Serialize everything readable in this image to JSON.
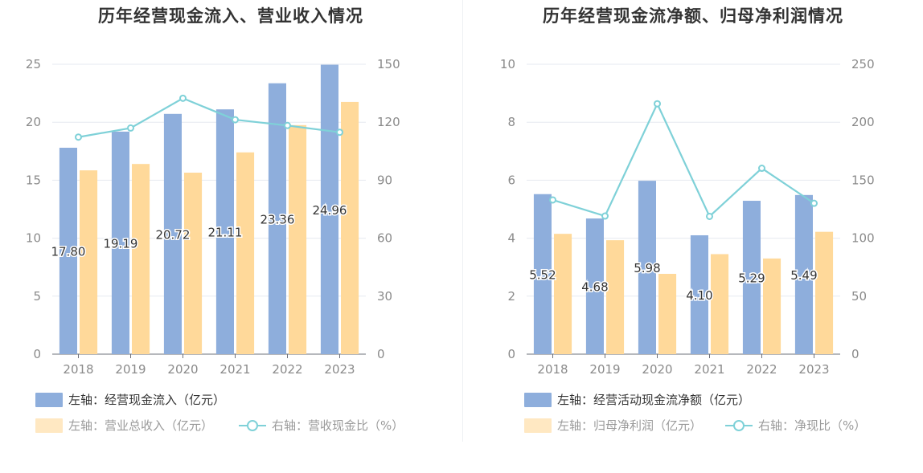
{
  "colors": {
    "bar_primary": "#8eaedc",
    "bar_secondary": "#ffd99a",
    "line": "#7fd1d8",
    "grid": "#e6e9f0",
    "axis_text": "#8a8a8a",
    "title_text": "#333333"
  },
  "chart_data": [
    {
      "type": "bar",
      "title": "历年经营现金流入、营业收入情况",
      "categories": [
        "2018",
        "2019",
        "2020",
        "2021",
        "2022",
        "2023"
      ],
      "y_left": {
        "ticks": [
          0,
          5,
          10,
          15,
          20,
          25
        ],
        "ylim": [
          0,
          25
        ]
      },
      "y_right": {
        "ticks": [
          0,
          30,
          60,
          90,
          120,
          150
        ],
        "ylim": [
          0,
          150
        ]
      },
      "series": [
        {
          "name": "左轴：经营现金流入（亿元）",
          "axis": "left",
          "kind": "bar",
          "values": [
            17.8,
            19.19,
            20.72,
            21.11,
            23.36,
            24.96
          ],
          "labels": [
            "17.80",
            "19.19",
            "20.72",
            "21.11",
            "23.36",
            "24.96"
          ]
        },
        {
          "name": "左轴：营业总收入（亿元）",
          "axis": "left",
          "kind": "bar",
          "values": [
            15.85,
            16.4,
            15.65,
            17.4,
            19.75,
            21.75
          ]
        },
        {
          "name": "右轴：营收现金比（%）",
          "axis": "right",
          "kind": "line",
          "values": [
            112.3,
            117.0,
            132.4,
            121.3,
            118.3,
            114.8
          ]
        }
      ],
      "legend": "bottom-left",
      "grid": true
    },
    {
      "type": "bar",
      "title": "历年经营现金流净额、归母净利润情况",
      "categories": [
        "2018",
        "2019",
        "2020",
        "2021",
        "2022",
        "2023"
      ],
      "y_left": {
        "ticks": [
          0,
          2,
          4,
          6,
          8,
          10
        ],
        "ylim": [
          0,
          10
        ]
      },
      "y_right": {
        "ticks": [
          0,
          50,
          100,
          150,
          200,
          250
        ],
        "ylim": [
          0,
          250
        ]
      },
      "series": [
        {
          "name": "左轴：经营活动现金流净额（亿元）",
          "axis": "left",
          "kind": "bar",
          "values": [
            5.52,
            4.68,
            5.98,
            4.1,
            5.29,
            5.49
          ],
          "labels": [
            "5.52",
            "4.68",
            "5.98",
            "4.10",
            "5.29",
            "5.49"
          ]
        },
        {
          "name": "左轴：归母净利润（亿元）",
          "axis": "left",
          "kind": "bar",
          "values": [
            4.15,
            3.93,
            2.77,
            3.45,
            3.3,
            4.22
          ]
        },
        {
          "name": "右轴：净现比（%）",
          "axis": "right",
          "kind": "line",
          "values": [
            133.0,
            119.1,
            215.9,
            118.8,
            160.3,
            130.1
          ]
        }
      ],
      "legend": "bottom-left",
      "grid": true
    }
  ]
}
